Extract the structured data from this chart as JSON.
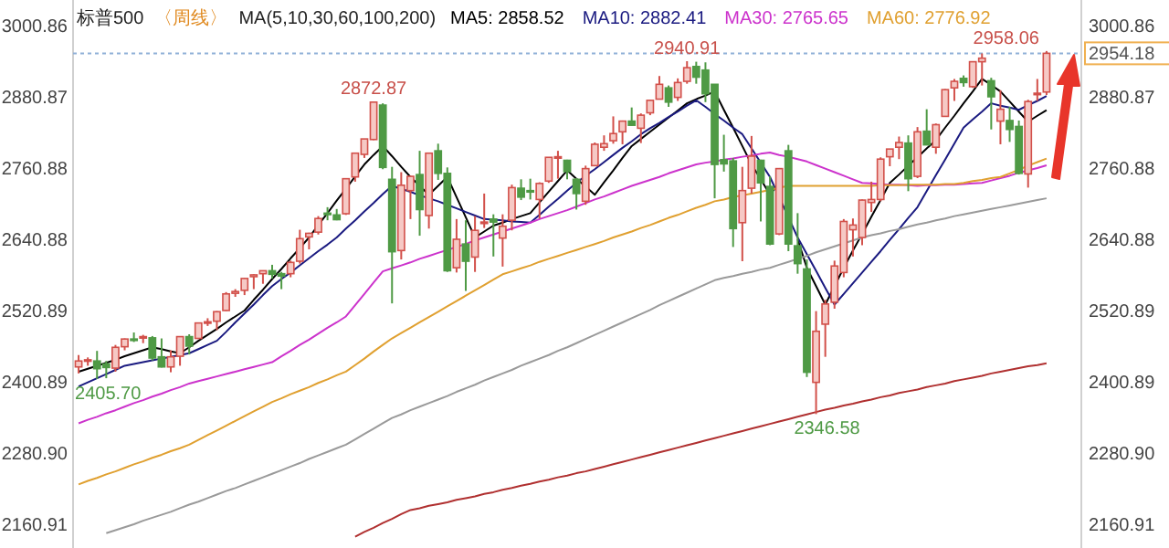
{
  "chart_data": {
    "type": "candlestick",
    "title": "标普500",
    "subtitle": "〈周线〉",
    "legend_title": "MA(5,10,30,60,100,200)",
    "tick_labels": "y",
    "ylim": [
      2121,
      3044
    ],
    "yticks": [
      2160.91,
      {
        "value": 2280.9,
        "label": "2280.90"
      },
      2400.89,
      2520.89,
      2640.88,
      2760.88,
      2880.87,
      3000.86
    ],
    "y2lim": [
      2121,
      3044
    ],
    "y2ticks": [
      2160.91,
      {
        "value": 2280.9,
        "label": "2280.90"
      },
      2400.89,
      2520.89,
      2640.88,
      2760.88,
      2880.87,
      3000.86
    ],
    "categories": [
      null,
      null,
      null,
      null,
      null,
      null,
      null,
      null,
      null,
      null,
      null,
      null,
      null,
      null,
      null,
      null,
      null,
      null,
      null,
      null,
      null,
      null,
      null,
      null,
      null,
      null,
      null,
      null,
      null,
      null,
      null,
      null,
      null,
      null,
      null,
      null,
      null,
      null,
      null,
      null,
      null,
      null,
      null,
      null,
      null,
      null,
      null,
      null,
      null,
      null,
      null,
      null,
      null,
      null,
      null,
      null,
      null,
      null,
      null,
      null,
      null,
      null,
      null,
      null,
      null,
      null,
      null,
      null,
      null,
      null,
      null,
      null,
      null,
      null,
      null,
      null,
      null,
      null,
      null,
      null,
      null,
      null,
      null,
      null,
      null,
      null,
      null,
      null,
      null,
      null,
      null,
      null,
      null,
      null,
      null,
      null,
      null,
      null,
      null,
      null,
      null,
      null,
      null,
      null,
      null,
      null
    ],
    "ohlc": [
      [
        2426,
        2446,
        2415,
        2436
      ],
      [
        2437,
        2442,
        2428,
        2438
      ],
      [
        2436,
        2453,
        2405.7,
        2423
      ],
      [
        2431,
        2436,
        2407,
        2425
      ],
      [
        2424,
        2463,
        2418,
        2459
      ],
      [
        2460,
        2474,
        2454,
        2473
      ],
      [
        2473,
        2484,
        2468,
        2472
      ],
      [
        2475,
        2480,
        2466,
        2477
      ],
      [
        2475,
        2478,
        2437,
        2441
      ],
      [
        2443,
        2474,
        2425,
        2426
      ],
      [
        2426,
        2454,
        2417,
        2443
      ],
      [
        2444,
        2477,
        2428,
        2477
      ],
      [
        2477,
        2481,
        2447,
        2461
      ],
      [
        2474,
        2500,
        2474,
        2500
      ],
      [
        2502,
        2508,
        2495,
        2502
      ],
      [
        2503,
        2520,
        2488,
        2519
      ],
      [
        2521,
        2552,
        2520,
        2549
      ],
      [
        2550,
        2557,
        2544,
        2553
      ],
      [
        2555,
        2576,
        2547,
        2575
      ],
      [
        2578,
        2582,
        2557,
        2581
      ],
      [
        2583,
        2588,
        2566,
        2588
      ],
      [
        2588,
        2598,
        2575,
        2582
      ],
      [
        2583,
        2586,
        2557,
        2579
      ],
      [
        2583,
        2605,
        2577,
        2602
      ],
      [
        2604,
        2657,
        2600,
        2642
      ],
      [
        2645,
        2652,
        2624,
        2651
      ],
      [
        2653,
        2680,
        2649,
        2676
      ],
      [
        2685,
        2695,
        2673,
        2683
      ],
      [
        2682,
        2692,
        2673,
        2674
      ],
      [
        2684,
        2744,
        2682,
        2743
      ],
      [
        2746,
        2787,
        2738,
        2786
      ],
      [
        2784,
        2810,
        2778,
        2810
      ],
      [
        2809,
        2872.87,
        2808,
        2872
      ],
      [
        2867,
        2870,
        2759,
        2762
      ],
      [
        2742,
        2763,
        2533,
        2620
      ],
      [
        2622,
        2754,
        2607,
        2732
      ],
      [
        2723,
        2748,
        2675,
        2747
      ],
      [
        2750,
        2790,
        2647,
        2691
      ],
      [
        2681,
        2787,
        2659,
        2786
      ],
      [
        2790,
        2802,
        2741,
        2752
      ],
      [
        2752,
        2762,
        2586,
        2588
      ],
      [
        2593,
        2675,
        2585,
        2641
      ],
      [
        2633,
        2673,
        2554,
        2604
      ],
      [
        2611,
        2680,
        2586,
        2656
      ],
      [
        2670,
        2718,
        2660,
        2670
      ],
      [
        2675,
        2683,
        2612,
        2670
      ],
      [
        2643,
        2683,
        2595,
        2663
      ],
      [
        2673,
        2733,
        2656,
        2728
      ],
      [
        2727,
        2742,
        2707,
        2712
      ],
      [
        2723,
        2743,
        2708,
        2721
      ],
      [
        2708,
        2737,
        2676,
        2735
      ],
      [
        2739,
        2779,
        2736,
        2779
      ],
      [
        2780,
        2790,
        2743,
        2780
      ],
      [
        2774,
        2775,
        2742,
        2755
      ],
      [
        2742,
        2744,
        2691,
        2718
      ],
      [
        2705,
        2765,
        2699,
        2760
      ],
      [
        2765,
        2804,
        2765,
        2801
      ],
      [
        2796,
        2816,
        2790,
        2802
      ],
      [
        2807,
        2848,
        2802,
        2819
      ],
      [
        2822,
        2841,
        2801,
        2840
      ],
      [
        2840,
        2863,
        2832,
        2833
      ],
      [
        2828,
        2853,
        2803,
        2850
      ],
      [
        2854,
        2876,
        2850,
        2875
      ],
      [
        2877,
        2916,
        2877,
        2902
      ],
      [
        2896,
        2900,
        2864,
        2872
      ],
      [
        2880,
        2912,
        2874,
        2905
      ],
      [
        2907,
        2940.91,
        2903,
        2930
      ],
      [
        2932,
        2940,
        2903,
        2914
      ],
      [
        2926,
        2939,
        2872,
        2886
      ],
      [
        2902,
        2902,
        2710,
        2767
      ],
      [
        2775,
        2817,
        2755,
        2768
      ],
      [
        2773,
        2778,
        2628,
        2659
      ],
      [
        2669,
        2763,
        2604,
        2723
      ],
      [
        2727,
        2815,
        2718,
        2781
      ],
      [
        2774,
        2775,
        2671,
        2736
      ],
      [
        2730,
        2747,
        2631,
        2633
      ],
      [
        2650,
        2761,
        2648,
        2760
      ],
      [
        2790,
        2800,
        2621,
        2633
      ],
      [
        2630,
        2685,
        2583,
        2600
      ],
      [
        2591,
        2607,
        2409,
        2417
      ],
      [
        2400,
        2520,
        2346.58,
        2486
      ],
      [
        2498,
        2539,
        2443,
        2532
      ],
      [
        2535,
        2605,
        2524,
        2596
      ],
      [
        2585,
        2675,
        2577,
        2671
      ],
      [
        2657,
        2676,
        2612,
        2665
      ],
      [
        2644,
        2708,
        2631,
        2707
      ],
      [
        2703,
        2738,
        2687,
        2708
      ],
      [
        2708,
        2779,
        2705,
        2776
      ],
      [
        2780,
        2793,
        2764,
        2793
      ],
      [
        2796,
        2814,
        2776,
        2804
      ],
      [
        2803,
        2816,
        2722,
        2743
      ],
      [
        2747,
        2830,
        2744,
        2822
      ],
      [
        2823,
        2860,
        2800,
        2800
      ],
      [
        2796,
        2836,
        2785,
        2834
      ],
      [
        2848,
        2894,
        2848,
        2893
      ],
      [
        2896,
        2911,
        2874,
        2907
      ],
      [
        2912,
        2917,
        2898,
        2905
      ],
      [
        2898,
        2940,
        2896,
        2940
      ],
      [
        2940,
        2954,
        2900,
        2946
      ],
      [
        2908,
        2913,
        2826,
        2881
      ],
      [
        2840,
        2892,
        2801,
        2860
      ],
      [
        2841,
        2864,
        2805,
        2826
      ],
      [
        2831,
        2841,
        2750,
        2752
      ],
      [
        2751,
        2876,
        2728,
        2873
      ],
      [
        2886,
        2911,
        2874,
        2887
      ],
      [
        2889,
        2958.06,
        2884,
        2954.18
      ]
    ],
    "series": [
      {
        "type": "line",
        "name": "MA5: 2858.52",
        "color": "#000000",
        "values": [
          2418,
          2423,
          2428,
          2433,
          2438,
          2444,
          2449,
          2454,
          2459,
          2456,
          2452,
          2449,
          2459,
          2470,
          2480,
          2490,
          2501,
          2511,
          2521,
          2539,
          2556,
          2574,
          2591,
          2609,
          2626,
          2644,
          2665,
          2685,
          2706,
          2726,
          2747,
          2767,
          2783,
          2798,
          2781,
          2763,
          2746,
          2731,
          2716,
          2731,
          2746,
          2712,
          2678,
          2644,
          2654,
          2664,
          2669,
          2675,
          2680,
          2685,
          2703,
          2721,
          2739,
          2757,
          2743,
          2730,
          2716,
          2737,
          2757,
          2778,
          2798,
          2810,
          2822,
          2834,
          2846,
          2858,
          2870,
          2877,
          2883,
          2890,
          2859,
          2829,
          2798,
          2767,
          2742,
          2716,
          2736,
          null,
          2641,
          2593,
          2562,
          2531,
          2562,
          2593,
          2622,
          2650,
          2679,
          2707,
          2736,
          2750,
          2765,
          2779,
          2794,
          2808,
          2829,
          2849,
          2870,
          2890,
          2911,
          2901,
          2890,
          2873,
          2856,
          2839,
          2849,
          2858.52
        ]
      },
      {
        "type": "line",
        "name": "MA10: 2882.41",
        "color": "#1a1a80",
        "values": [
          2393,
          2400,
          2407,
          2414,
          2421,
          2428,
          2431,
          2434,
          2437,
          2440,
          2443,
          2446,
          2449,
          2456,
          2463,
          2470,
          2485,
          2501,
          2516,
          2531,
          2547,
          2562,
          2574,
          2585,
          2597,
          2609,
          2621,
          2632,
          2644,
          2659,
          2673,
          2688,
          2702,
          2717,
          2731,
          2726,
          2721,
          2715,
          2710,
          2705,
          2699,
          2693,
          2687,
          2681,
          2675,
          2674,
          2673,
          2671,
          2670,
          2669,
          2682,
          2696,
          2709,
          2723,
          2736,
          2748,
          2759,
          2771,
          2783,
          2795,
          2806,
          2818,
          2828,
          2837,
          2847,
          2856,
          2866,
          2875,
          2864,
          2852,
          2841,
          2829,
          2818,
          2794,
          2770,
          2746,
          2712,
          2678,
          2644,
          2616,
          2588,
          2559,
          2531,
          2549,
          2567,
          2585,
          2603,
          2621,
          2640,
          2658,
          2677,
          2695,
          2722,
          2749,
          2775,
          2802,
          2829,
          2843,
          2856,
          2870,
          2866,
          2863,
          2859,
          2867,
          2874,
          2882.41
        ]
      },
      {
        "type": "line",
        "name": "MA30: 2765.65",
        "color": "#cc33cc",
        "values": [
          2331,
          2337,
          2342,
          2348,
          2353,
          2359,
          2365,
          2370,
          2376,
          2381,
          2387,
          2392,
          2398,
          2402,
          2406,
          2410,
          2414,
          2418,
          2422,
          2426,
          2430,
          2434,
          2444,
          2453,
          2463,
          2472,
          2482,
          2492,
          2501,
          2511,
          2530,
          2549,
          2568,
          2587,
          2592,
          2597,
          2602,
          2608,
          2613,
          2618,
          2623,
          2628,
          2633,
          2639,
          2644,
          2649,
          2654,
          2659,
          2664,
          2669,
          2675,
          2680,
          2685,
          2690,
          2696,
          2702,
          2708,
          2713,
          2719,
          2725,
          2731,
          2736,
          2741,
          2746,
          2752,
          2757,
          2762,
          2767,
          2770,
          2772,
          2775,
          2777,
          2780,
          2782,
          2785,
          2787,
          2783,
          2780,
          2776,
          2772,
          2766,
          2760,
          2754,
          2748,
          2742,
          2736,
          2735,
          2734,
          2733,
          2733,
          2732,
          2731,
          2732,
          2732,
          2733,
          2733,
          2734,
          2735,
          2736,
          2740,
          2744,
          2748,
          2753,
          2757,
          2761,
          2765.65
        ]
      },
      {
        "type": "line",
        "name": "MA60: 2776.92",
        "color": "#e0a030",
        "values": [
          2228,
          2234,
          2239,
          2245,
          2250,
          2256,
          2262,
          2267,
          2273,
          2278,
          2284,
          2289,
          2295,
          2303,
          2311,
          2319,
          2327,
          2335,
          2343,
          2351,
          2359,
          2367,
          2373,
          2380,
          2386,
          2392,
          2399,
          2405,
          2412,
          2418,
          2429,
          2440,
          2452,
          2463,
          2474,
          2483,
          2492,
          2501,
          2510,
          2519,
          2528,
          2537,
          2546,
          2555,
          2564,
          2573,
          2582,
          2587,
          2592,
          2597,
          2603,
          2608,
          2613,
          2618,
          2623,
          2628,
          2633,
          2638,
          2644,
          2649,
          2654,
          2660,
          2665,
          2671,
          2677,
          2682,
          2688,
          2694,
          2699,
          2705,
          2708,
          2712,
          2715,
          2718,
          2721,
          2724,
          2728,
          2731,
          2731,
          2731,
          2731,
          2731,
          2731,
          2731,
          2731,
          2731,
          2731,
          2732,
          2732,
          2732,
          2733,
          2733,
          2733,
          2733,
          2734,
          2734,
          2736,
          2739,
          2741,
          2744,
          2746,
          2752,
          2758,
          2765,
          2771,
          2776.92
        ]
      },
      {
        "type": "line",
        "color": "#9a9a9a",
        "values": [
          null,
          null,
          null,
          2146,
          2151,
          2156,
          2161,
          2167,
          2172,
          2177,
          2182,
          2188,
          2194,
          2199,
          2205,
          2211,
          2217,
          2222,
          2228,
          2234,
          2240,
          2246,
          2252,
          2258,
          2264,
          2271,
          2277,
          2283,
          2289,
          2295,
          2304,
          2313,
          2322,
          2331,
          2340,
          2346,
          2353,
          2359,
          2365,
          2371,
          2377,
          2384,
          2390,
          2396,
          2403,
          2409,
          2415,
          2421,
          2428,
          2434,
          2440,
          2446,
          2453,
          2459,
          2466,
          2473,
          2480,
          2487,
          2494,
          2501,
          2508,
          2515,
          2522,
          2530,
          2537,
          2544,
          2551,
          2558,
          2565,
          2572,
          2576,
          2579,
          2583,
          2586,
          2590,
          2593,
          2598,
          2603,
          2608,
          2613,
          2619,
          2624,
          2629,
          2634,
          2639,
          2644,
          2648,
          2651,
          2655,
          2658,
          2662,
          2666,
          2669,
          2673,
          2676,
          2680,
          2683,
          2686,
          2689,
          2692,
          2695,
          2698,
          2701,
          2704,
          2707,
          2710
        ]
      },
      {
        "type": "line",
        "color": "#b03030",
        "values": [
          null,
          null,
          null,
          null,
          null,
          null,
          null,
          null,
          null,
          null,
          null,
          null,
          null,
          null,
          null,
          null,
          null,
          null,
          null,
          null,
          null,
          null,
          null,
          null,
          null,
          null,
          null,
          null,
          null,
          null,
          2140,
          2148,
          2155,
          2163,
          2170,
          2178,
          2185,
          2188,
          2192,
          2195,
          2198,
          2202,
          2205,
          2208,
          2212,
          2215,
          2219,
          2222,
          2226,
          2229,
          2233,
          2236,
          2240,
          2243,
          2247,
          2250,
          2254,
          2258,
          2262,
          2266,
          2270,
          2274,
          2278,
          2282,
          2286,
          2290,
          2294,
          2298,
          2302,
          2306,
          2310,
          2314,
          2318,
          2322,
          2326,
          2330,
          2334,
          2338,
          2342,
          2346,
          2350,
          2354,
          2357,
          2361,
          2364,
          2368,
          2371,
          2375,
          2378,
          2382,
          2385,
          2388,
          2392,
          2395,
          2398,
          2402,
          2405,
          2408,
          2411,
          2415,
          2418,
          2421,
          2424,
          2427,
          2429,
          2432
        ]
      }
    ],
    "ref_lines": [
      {
        "axis": "y2",
        "value": 2954.18,
        "label": "2954.18",
        "color": "#8fb0d8",
        "line_style": "dotted"
      }
    ],
    "annotations": [
      {
        "text": "2872.87",
        "y": 2872.87
      },
      {
        "text": "2940.91",
        "y": 2940.91
      },
      {
        "text": "2405.70",
        "y": 2405.7
      },
      {
        "text": "2346.58",
        "y": 2346.58
      },
      {
        "text": "2958.06",
        "y": 2958.06
      }
    ]
  }
}
